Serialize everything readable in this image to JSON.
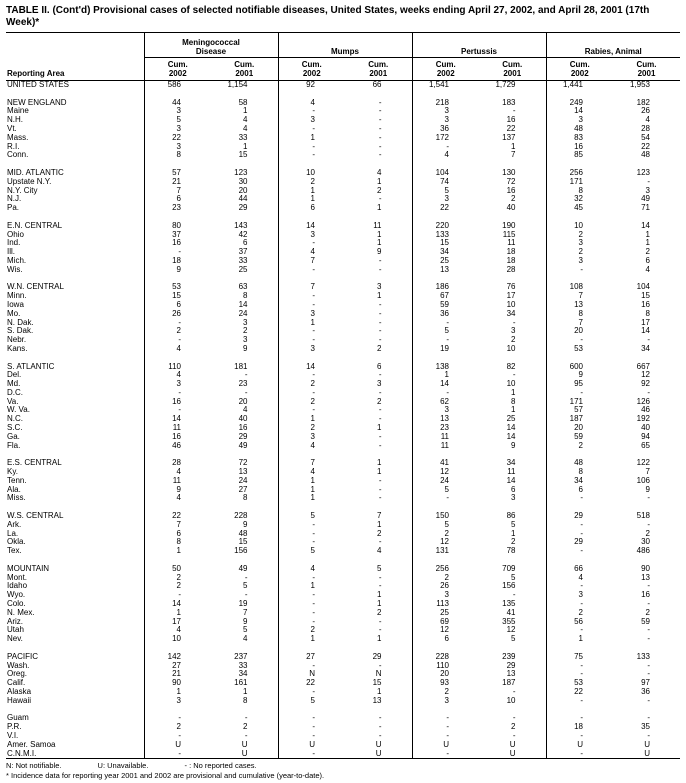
{
  "title": "TABLE II. (Cont'd) Provisional cases of selected notifiable diseases, United States, weeks ending April 27, 2002, and April 28, 2001 (17th Week)*",
  "columns": {
    "reporting_area": "Reporting Area",
    "groups": [
      {
        "label": "Meningococcal Disease"
      },
      {
        "label": "Mumps"
      },
      {
        "label": "Pertussis"
      },
      {
        "label": "Rabies, Animal"
      }
    ],
    "cum_label": "Cum.",
    "years": [
      "2002",
      "2001",
      "2002",
      "2001",
      "2002",
      "2001",
      "2002",
      "2001"
    ]
  },
  "rows": [
    {
      "area": "UNITED STATES",
      "values": [
        "586",
        "1,154",
        "92",
        "66",
        "1,541",
        "1,729",
        "1,441",
        "1,953"
      ]
    },
    {
      "gap": true
    },
    {
      "area": "NEW ENGLAND",
      "values": [
        "44",
        "58",
        "4",
        "-",
        "218",
        "183",
        "249",
        "182"
      ]
    },
    {
      "area": "Maine",
      "values": [
        "3",
        "1",
        "-",
        "-",
        "3",
        "-",
        "14",
        "26"
      ]
    },
    {
      "area": "N.H.",
      "values": [
        "5",
        "4",
        "3",
        "-",
        "3",
        "16",
        "3",
        "4"
      ]
    },
    {
      "area": "Vt.",
      "values": [
        "3",
        "4",
        "-",
        "-",
        "36",
        "22",
        "48",
        "28"
      ]
    },
    {
      "area": "Mass.",
      "values": [
        "22",
        "33",
        "1",
        "-",
        "172",
        "137",
        "83",
        "54"
      ]
    },
    {
      "area": "R.I.",
      "values": [
        "3",
        "1",
        "-",
        "-",
        "-",
        "1",
        "16",
        "22"
      ]
    },
    {
      "area": "Conn.",
      "values": [
        "8",
        "15",
        "-",
        "-",
        "4",
        "7",
        "85",
        "48"
      ]
    },
    {
      "gap": true
    },
    {
      "area": "MID. ATLANTIC",
      "values": [
        "57",
        "123",
        "10",
        "4",
        "104",
        "130",
        "256",
        "123"
      ]
    },
    {
      "area": "Upstate N.Y.",
      "values": [
        "21",
        "30",
        "2",
        "1",
        "74",
        "72",
        "171",
        "-"
      ]
    },
    {
      "area": "N.Y. City",
      "values": [
        "7",
        "20",
        "1",
        "2",
        "5",
        "16",
        "8",
        "3"
      ]
    },
    {
      "area": "N.J.",
      "values": [
        "6",
        "44",
        "1",
        "-",
        "3",
        "2",
        "32",
        "49"
      ]
    },
    {
      "area": "Pa.",
      "values": [
        "23",
        "29",
        "6",
        "1",
        "22",
        "40",
        "45",
        "71"
      ]
    },
    {
      "gap": true
    },
    {
      "area": "E.N. CENTRAL",
      "values": [
        "80",
        "143",
        "14",
        "11",
        "220",
        "190",
        "10",
        "14"
      ]
    },
    {
      "area": "Ohio",
      "values": [
        "37",
        "42",
        "3",
        "1",
        "133",
        "115",
        "2",
        "1"
      ]
    },
    {
      "area": "Ind.",
      "values": [
        "16",
        "6",
        "-",
        "1",
        "15",
        "11",
        "3",
        "1"
      ]
    },
    {
      "area": "Ill.",
      "values": [
        "-",
        "37",
        "4",
        "9",
        "34",
        "18",
        "2",
        "2"
      ]
    },
    {
      "area": "Mich.",
      "values": [
        "18",
        "33",
        "7",
        "-",
        "25",
        "18",
        "3",
        "6"
      ]
    },
    {
      "area": "Wis.",
      "values": [
        "9",
        "25",
        "-",
        "-",
        "13",
        "28",
        "-",
        "4"
      ]
    },
    {
      "gap": true
    },
    {
      "area": "W.N. CENTRAL",
      "values": [
        "53",
        "63",
        "7",
        "3",
        "186",
        "76",
        "108",
        "104"
      ]
    },
    {
      "area": "Minn.",
      "values": [
        "15",
        "8",
        "-",
        "1",
        "67",
        "17",
        "7",
        "15"
      ]
    },
    {
      "area": "Iowa",
      "values": [
        "6",
        "14",
        "-",
        "-",
        "59",
        "10",
        "13",
        "16"
      ]
    },
    {
      "area": "Mo.",
      "values": [
        "26",
        "24",
        "3",
        "-",
        "36",
        "34",
        "8",
        "8"
      ]
    },
    {
      "area": "N. Dak.",
      "values": [
        "-",
        "3",
        "1",
        "-",
        "-",
        "-",
        "7",
        "17"
      ]
    },
    {
      "area": "S. Dak.",
      "values": [
        "2",
        "2",
        "-",
        "-",
        "5",
        "3",
        "20",
        "14"
      ]
    },
    {
      "area": "Nebr.",
      "values": [
        "-",
        "3",
        "-",
        "-",
        "-",
        "2",
        "-",
        "-"
      ]
    },
    {
      "area": "Kans.",
      "values": [
        "4",
        "9",
        "3",
        "2",
        "19",
        "10",
        "53",
        "34"
      ]
    },
    {
      "gap": true
    },
    {
      "area": "S. ATLANTIC",
      "values": [
        "110",
        "181",
        "14",
        "6",
        "138",
        "82",
        "600",
        "667"
      ]
    },
    {
      "area": "Del.",
      "values": [
        "4",
        "-",
        "-",
        "-",
        "1",
        "-",
        "9",
        "12"
      ]
    },
    {
      "area": "Md.",
      "values": [
        "3",
        "23",
        "2",
        "3",
        "14",
        "10",
        "95",
        "92"
      ]
    },
    {
      "area": "D.C.",
      "values": [
        "-",
        "-",
        "-",
        "-",
        "-",
        "1",
        "-",
        "-"
      ]
    },
    {
      "area": "Va.",
      "values": [
        "16",
        "20",
        "2",
        "2",
        "62",
        "8",
        "171",
        "126"
      ]
    },
    {
      "area": "W. Va.",
      "values": [
        "-",
        "4",
        "-",
        "-",
        "3",
        "1",
        "57",
        "46"
      ]
    },
    {
      "area": "N.C.",
      "values": [
        "14",
        "40",
        "1",
        "-",
        "13",
        "25",
        "187",
        "192"
      ]
    },
    {
      "area": "S.C.",
      "values": [
        "11",
        "16",
        "2",
        "1",
        "23",
        "14",
        "20",
        "40"
      ]
    },
    {
      "area": "Ga.",
      "values": [
        "16",
        "29",
        "3",
        "-",
        "11",
        "14",
        "59",
        "94"
      ]
    },
    {
      "area": "Fla.",
      "values": [
        "46",
        "49",
        "4",
        "-",
        "11",
        "9",
        "2",
        "65"
      ]
    },
    {
      "gap": true
    },
    {
      "area": "E.S. CENTRAL",
      "values": [
        "28",
        "72",
        "7",
        "1",
        "41",
        "34",
        "48",
        "122"
      ]
    },
    {
      "area": "Ky.",
      "values": [
        "4",
        "13",
        "4",
        "1",
        "12",
        "11",
        "8",
        "7"
      ]
    },
    {
      "area": "Tenn.",
      "values": [
        "11",
        "24",
        "1",
        "-",
        "24",
        "14",
        "34",
        "106"
      ]
    },
    {
      "area": "Ala.",
      "values": [
        "9",
        "27",
        "1",
        "-",
        "5",
        "6",
        "6",
        "9"
      ]
    },
    {
      "area": "Miss.",
      "values": [
        "4",
        "8",
        "1",
        "-",
        "-",
        "3",
        "-",
        "-"
      ]
    },
    {
      "gap": true
    },
    {
      "area": "W.S. CENTRAL",
      "values": [
        "22",
        "228",
        "5",
        "7",
        "150",
        "86",
        "29",
        "518"
      ]
    },
    {
      "area": "Ark.",
      "values": [
        "7",
        "9",
        "-",
        "1",
        "5",
        "5",
        "-",
        "-"
      ]
    },
    {
      "area": "La.",
      "values": [
        "6",
        "48",
        "-",
        "2",
        "2",
        "1",
        "-",
        "2"
      ]
    },
    {
      "area": "Okla.",
      "values": [
        "8",
        "15",
        "-",
        "-",
        "12",
        "2",
        "29",
        "30"
      ]
    },
    {
      "area": "Tex.",
      "values": [
        "1",
        "156",
        "5",
        "4",
        "131",
        "78",
        "-",
        "486"
      ]
    },
    {
      "gap": true
    },
    {
      "area": "MOUNTAIN",
      "values": [
        "50",
        "49",
        "4",
        "5",
        "256",
        "709",
        "66",
        "90"
      ]
    },
    {
      "area": "Mont.",
      "values": [
        "2",
        "-",
        "-",
        "-",
        "2",
        "5",
        "4",
        "13"
      ]
    },
    {
      "area": "Idaho",
      "values": [
        "2",
        "5",
        "1",
        "-",
        "26",
        "156",
        "-",
        "-"
      ]
    },
    {
      "area": "Wyo.",
      "values": [
        "-",
        "-",
        "-",
        "1",
        "3",
        "-",
        "3",
        "16"
      ]
    },
    {
      "area": "Colo.",
      "values": [
        "14",
        "19",
        "-",
        "1",
        "113",
        "135",
        "-",
        "-"
      ]
    },
    {
      "area": "N. Mex.",
      "values": [
        "1",
        "7",
        "-",
        "2",
        "25",
        "41",
        "2",
        "2"
      ]
    },
    {
      "area": "Ariz.",
      "values": [
        "17",
        "9",
        "-",
        "-",
        "69",
        "355",
        "56",
        "59"
      ]
    },
    {
      "area": "Utah",
      "values": [
        "4",
        "5",
        "2",
        "-",
        "12",
        "12",
        "-",
        "-"
      ]
    },
    {
      "area": "Nev.",
      "values": [
        "10",
        "4",
        "1",
        "1",
        "6",
        "5",
        "1",
        "-"
      ]
    },
    {
      "gap": true
    },
    {
      "area": "PACIFIC",
      "values": [
        "142",
        "237",
        "27",
        "29",
        "228",
        "239",
        "75",
        "133"
      ]
    },
    {
      "area": "Wash.",
      "values": [
        "27",
        "33",
        "-",
        "-",
        "110",
        "29",
        "-",
        "-"
      ]
    },
    {
      "area": "Oreg.",
      "values": [
        "21",
        "34",
        "N",
        "N",
        "20",
        "13",
        "-",
        "-"
      ]
    },
    {
      "area": "Calif.",
      "values": [
        "90",
        "161",
        "22",
        "15",
        "93",
        "187",
        "53",
        "97"
      ]
    },
    {
      "area": "Alaska",
      "values": [
        "1",
        "1",
        "-",
        "1",
        "2",
        "-",
        "22",
        "36"
      ]
    },
    {
      "area": "Hawaii",
      "values": [
        "3",
        "8",
        "5",
        "13",
        "3",
        "10",
        "-",
        "-"
      ]
    },
    {
      "gap": true
    },
    {
      "area": "Guam",
      "values": [
        "-",
        "-",
        "-",
        "-",
        "-",
        "-",
        "-",
        "-"
      ]
    },
    {
      "area": "P.R.",
      "values": [
        "2",
        "2",
        "-",
        "-",
        "-",
        "2",
        "18",
        "35"
      ]
    },
    {
      "area": "V.I.",
      "values": [
        "-",
        "-",
        "-",
        "-",
        "-",
        "-",
        "-",
        "-"
      ]
    },
    {
      "area": "Amer. Samoa",
      "values": [
        "U",
        "U",
        "U",
        "U",
        "U",
        "U",
        "U",
        "U"
      ]
    },
    {
      "area": "C.N.M.I.",
      "values": [
        "-",
        "U",
        "-",
        "U",
        "-",
        "U",
        "-",
        "U"
      ]
    }
  ],
  "footnotes": {
    "legend": [
      "N: Not notifiable.",
      "U: Unavailable.",
      "- : No reported cases."
    ],
    "note": "* Incidence data for reporting year 2001 and 2002 are provisional and cumulative (year-to-date)."
  }
}
